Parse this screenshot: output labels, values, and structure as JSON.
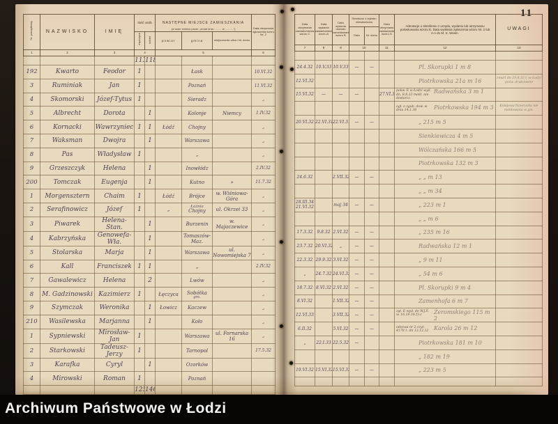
{
  "archive_bar": {
    "label": "Archiwum Państwowe w Łodzi"
  },
  "page_number": "11",
  "table": {
    "headers": {
      "col1": "Nr. porządkowy",
      "col2": "NAZWISKO",
      "col3": "IMIĘ",
      "col4": "Ilość osób",
      "col4a": "mężczyzn",
      "col4b": "kobiet",
      "col5_line1": "NASTĘPNE MIEJSCE ZAMIESZKANIA",
      "col5_line2": "(w razie śmierci pisać: „zmarł dnia……… w ………”)",
      "col5a": "powiat",
      "col5b": "gmina",
      "col5c": "miejscowość ulica i Nr. domu",
      "col6": "Data otrzymania zgłoszenia wzoru Nr. 2",
      "col7": "Data otrzymania zawiadomienia wzoru C",
      "col8": "Data wysłania zawiadomienia wzoru A",
      "col9": "Data wydania dowodu zameldowania wzoru B",
      "col10": "Skreślono z rejestru mieszkańców",
      "col10a": "Data",
      "col10b": "Nr. domu",
      "col11": "Data otrzymania zawiadomienia wzoru D",
      "col12": "Adnotacje o skreśleniu z urzędu, wydaniu lub otrzymaniu pokwitowania wzoru E.  Data wysłania zgłoszenia wzoru Nr. 2 lub 2-A do M. S. Wewn.",
      "col13": "UWAGI",
      "numbers": [
        "1",
        "2",
        "3",
        "4",
        "5",
        "6",
        "7",
        "8",
        "9",
        "10",
        "11",
        "12",
        "13"
      ]
    },
    "totals_top": {
      "m": "113",
      "k": "118"
    },
    "totals_bottom": {
      "m": "125",
      "k": "146"
    },
    "rows": [
      {
        "nr": "192",
        "naz": "Kwarto",
        "im": "Feodor",
        "m": "1",
        "k": "",
        "pow": "",
        "gm": "Łask",
        "mj": "",
        "d6": "10.VI.32",
        "c7": "24.4.32",
        "c8": "10.V.33",
        "c9": "10.V.33",
        "c10a": "—",
        "c10b": "—",
        "c11": "",
        "adn": "",
        "adr": "Pl. Skorupki 1 m 8",
        "uw": ""
      },
      {
        "nr": "3",
        "naz": "Ruminiak",
        "im": "Jan",
        "m": "1",
        "gm": "Poznań",
        "d6": "11.VI.32",
        "c7": "12.VI.32",
        "adr": "Piotrkowska 21a m 16",
        "uw": "zmarł dn 29.8.33 r. w Łodzi pośw. drukowane"
      },
      {
        "nr": "4",
        "naz": "Skomorski",
        "im": "Józef-Tytus",
        "m": "1",
        "gm": "Sieradz",
        "d6": "„",
        "c7": "15.VI.32",
        "c8": "—",
        "c9": "—",
        "c10a": "—",
        "c11": "27.VI.32",
        "adn": "pokw. E w Łodzi wyd. dn. 8.8.33 meld. nie dostarcz.",
        "adr": "Radwańska 3 m 1"
      },
      {
        "nr": "5",
        "naz": "Albrecht",
        "im": "Dorota",
        "k": "1",
        "gm": "Kolonje",
        "mj": "Niemcy",
        "d6": "1.IV.32",
        "adn": "ogł. o zgub. dow. w dniu 14.1.30",
        "adr": "Piotrkowska 194 m 3",
        "uw": "Kolejowa-Nawrocka nie meldowana w gm."
      },
      {
        "nr": "6",
        "naz": "Kornacki",
        "im": "Wawrzyniec",
        "m": "1",
        "k": "1",
        "pow": "Łódź",
        "gm": "Chojny",
        "d6": "„",
        "c7": "20.VI.32",
        "c8": "22.VI.31",
        "c9": "22.VI.31",
        "c10a": "—",
        "c10b": "—",
        "adr": "„  215 m 5"
      },
      {
        "nr": "7",
        "naz": "Waksman",
        "im": "Dwojra",
        "k": "1",
        "gm": "Warszawa",
        "d6": "„",
        "adr": "Sienkiewicza 4 m 5"
      },
      {
        "nr": "8",
        "naz": "Pas",
        "im": "Władysław",
        "m": "1",
        "gm": "„",
        "d6": "„",
        "adr": "Wólczańska 166 m 5"
      },
      {
        "nr": "9",
        "naz": "Grzeszczyk",
        "im": "Helena",
        "k": "1",
        "gm": "Inowłódz",
        "d6": "2.IV.32",
        "adr": "Piotrkowska 132 m 3"
      },
      {
        "nr": "200",
        "naz": "Tomczak",
        "im": "Eugenja",
        "k": "1",
        "gm": "Kutno",
        "mj": "»",
        "d6": "11.7.32",
        "c7": "24.6.32",
        "c9": "2.VII.32",
        "c10a": "—",
        "c10b": "—",
        "adr": "„   „ m 13"
      },
      {
        "nr": "1",
        "naz": "Morgensztern",
        "im": "Chaim",
        "m": "1",
        "pow": "Łódź",
        "gm": "Brójce",
        "mj": "w. Wiśniowa-Góra",
        "d6": "„",
        "adr": "„   „ m 34"
      },
      {
        "nr": "2",
        "naz": "Serafinowicz",
        "im": "Józef",
        "m": "1",
        "pow": "„",
        "gm": "Chojny",
        "gmn": "Łaźnia",
        "mj": "ul. Okrzei 33",
        "d6": "„",
        "c7": "28.III.34 21.VI.32",
        "c9": "maj 34",
        "c10a": "—",
        "c10b": "—",
        "adr": "„  223 m 1"
      },
      {
        "nr": "3",
        "naz": "Piwarek",
        "im": "Helena-Stan.",
        "k": "1",
        "gm": "Burzenin",
        "mj": "w. Majaczewice",
        "d6": "„",
        "adr": "„   „ m 6"
      },
      {
        "nr": "4",
        "naz": "Kabrzyńska",
        "im": "Genowefa-Wła.",
        "k": "1",
        "gm": "Tomaszów-Maz.",
        "d6": "„",
        "c7": "17.3.32",
        "c8": "9.8.32",
        "c9": "2.VI.32",
        "c10a": "—",
        "c10b": "—",
        "adr": "„  235 m 16"
      },
      {
        "nr": "5",
        "naz": "Stolarska",
        "im": "Marja",
        "k": "1",
        "gm": "Warszawa",
        "mj": "ul. Nowomiejska 7",
        "d6": "„",
        "c7": "23.7.32",
        "c8": "20.VI.32",
        "c9": "„",
        "c10a": "—",
        "c10b": "—",
        "adr": "Radwańska 12 m 1"
      },
      {
        "nr": "6",
        "naz": "Kall",
        "im": "Franciszek",
        "m": "1",
        "k": "1",
        "gm": "„",
        "d6": "2.IV.32",
        "c7": "22.3.32",
        "c8": "29.9.32",
        "c9": "3.VI.32",
        "c10a": "—",
        "c10b": "—",
        "adr": "„  9 m 11"
      },
      {
        "nr": "7",
        "naz": "Gawalewicz",
        "im": "Helena",
        "k": "2",
        "gm": "Lwów",
        "d6": "„",
        "c7": "„",
        "c8": "24.7.32",
        "c9": "24.VI.32",
        "c10a": "—",
        "c10b": "—",
        "adr": "„  54 m 6"
      },
      {
        "nr": "8",
        "naz": "M. Gadzinowski",
        "im": "Kazimierz",
        "m": "1",
        "pow": "Łęczyca",
        "gm": "Sobótka",
        "gmn2": "gm.",
        "d6": "„",
        "c7": "18.7.32",
        "c8": "8.VI.32",
        "c9": "2.VI.32",
        "c10a": "—",
        "c10b": "—",
        "adr": "Pl. Skorupki 9 m 4"
      },
      {
        "nr": "9",
        "naz": "Szymczak",
        "im": "Weronika",
        "k": "1",
        "pow": "Łowicz",
        "gm": "Kaczew",
        "d6": "„",
        "c7": "8.VI.32",
        "c9": "1.VII.32",
        "c10a": "—",
        "c10b": "—",
        "adr": "Zamenhofa 6 m 7"
      },
      {
        "nr": "210",
        "naz": "Wasilewska",
        "im": "Marjanna",
        "k": "1",
        "gm": "Koło",
        "d6": "„",
        "c7": "12.VI.33",
        "c9": "3.VII.32",
        "c10a": "—",
        "c10b": "—",
        "adn": "zgł. E wyd. do W.J.Ś. w. 16.18.16 f.l.c",
        "adr": "Żeromskiego 115 m 2"
      },
      {
        "nr": "1",
        "naz": "Sypniewski",
        "im": "Mirosław-Jan",
        "m": "1",
        "gm": "Warszawa",
        "mj": "ul. Fornarska 16",
        "d6": "„",
        "c7": "6.II.32",
        "c9": "5.VI.32",
        "c10a": "—",
        "c10b": "—",
        "adn": "odezwa nr 2 czyt. 4178 ż. dn 13.12.32",
        "adr": "Karola 26 m 12"
      },
      {
        "nr": "2",
        "naz": "Starkowski",
        "im": "Tadeusz-Jerzy",
        "m": "1",
        "gm": "Tarnopol",
        "d6": "17.5.32",
        "c7": "„",
        "c8": "22.I.33",
        "c9": "22.5.32",
        "c10a": "—",
        "adr": "Piotrkowska 181 m 10"
      },
      {
        "nr": "3",
        "naz": "Karafka",
        "im": "Cyryl",
        "k": "1",
        "gm": "Ozorków",
        "d6": "",
        "adr": "„  182 m 19"
      },
      {
        "nr": "4",
        "naz": "Mirowski",
        "im": "Roman",
        "m": "1",
        "gm": "Poznań",
        "d6": "",
        "c7": "19.VI.32",
        "c8": "15.VI.32",
        "c9": "15.VI.32",
        "c10a": "—",
        "c10b": "—",
        "adr": "„  223 m 5"
      }
    ]
  }
}
